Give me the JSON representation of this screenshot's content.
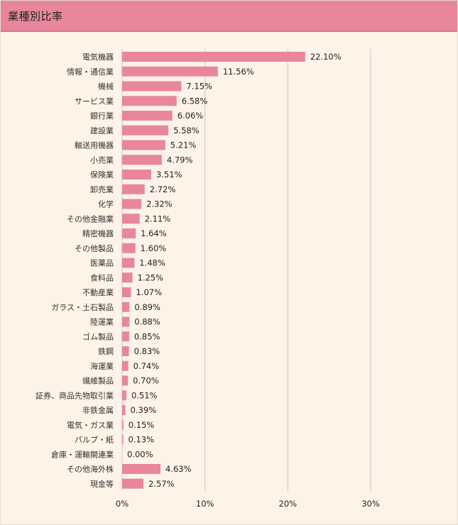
{
  "header": {
    "title": "業種別比率"
  },
  "colors": {
    "bar": "#e8879c",
    "grid": "#d6d6d6",
    "header": "#e8879c",
    "background": "#fdf3e6"
  },
  "chart_data": {
    "type": "bar",
    "orientation": "horizontal",
    "title": "",
    "xlim": [
      0,
      30
    ],
    "xticks": [
      "0%",
      "10%",
      "20%",
      "30%"
    ],
    "grid": true,
    "categories": [
      "電気機器",
      "情報・通信業",
      "機械",
      "サービス業",
      "銀行業",
      "建設業",
      "輸送用機器",
      "小売業",
      "保険業",
      "卸売業",
      "化学",
      "その他金融業",
      "精密機器",
      "その他製品",
      "医薬品",
      "食料品",
      "不動産業",
      "ガラス・土石製品",
      "陸運業",
      "ゴム製品",
      "鉄鋼",
      "海運業",
      "繊維製品",
      "証券、商品先物取引業",
      "非鉄金属",
      "電気・ガス業",
      "パルプ・紙",
      "倉庫・運輸関連業",
      "その他海外株",
      "現金等"
    ],
    "values": [
      22.1,
      11.56,
      7.15,
      6.58,
      6.06,
      5.58,
      5.21,
      4.79,
      3.51,
      2.72,
      2.32,
      2.11,
      1.64,
      1.6,
      1.48,
      1.25,
      1.07,
      0.89,
      0.88,
      0.85,
      0.83,
      0.74,
      0.7,
      0.51,
      0.39,
      0.15,
      0.13,
      0.0,
      4.63,
      2.57
    ],
    "value_labels": [
      "22.10%",
      "11.56%",
      "7.15%",
      "6.58%",
      "6.06%",
      "5.58%",
      "5.21%",
      "4.79%",
      "3.51%",
      "2.72%",
      "2.32%",
      "2.11%",
      "1.64%",
      "1.60%",
      "1.48%",
      "1.25%",
      "1.07%",
      "0.89%",
      "0.88%",
      "0.85%",
      "0.83%",
      "0.74%",
      "0.70%",
      "0.51%",
      "0.39%",
      "0.15%",
      "0.13%",
      "0.00%",
      "4.63%",
      "2.57%"
    ]
  }
}
